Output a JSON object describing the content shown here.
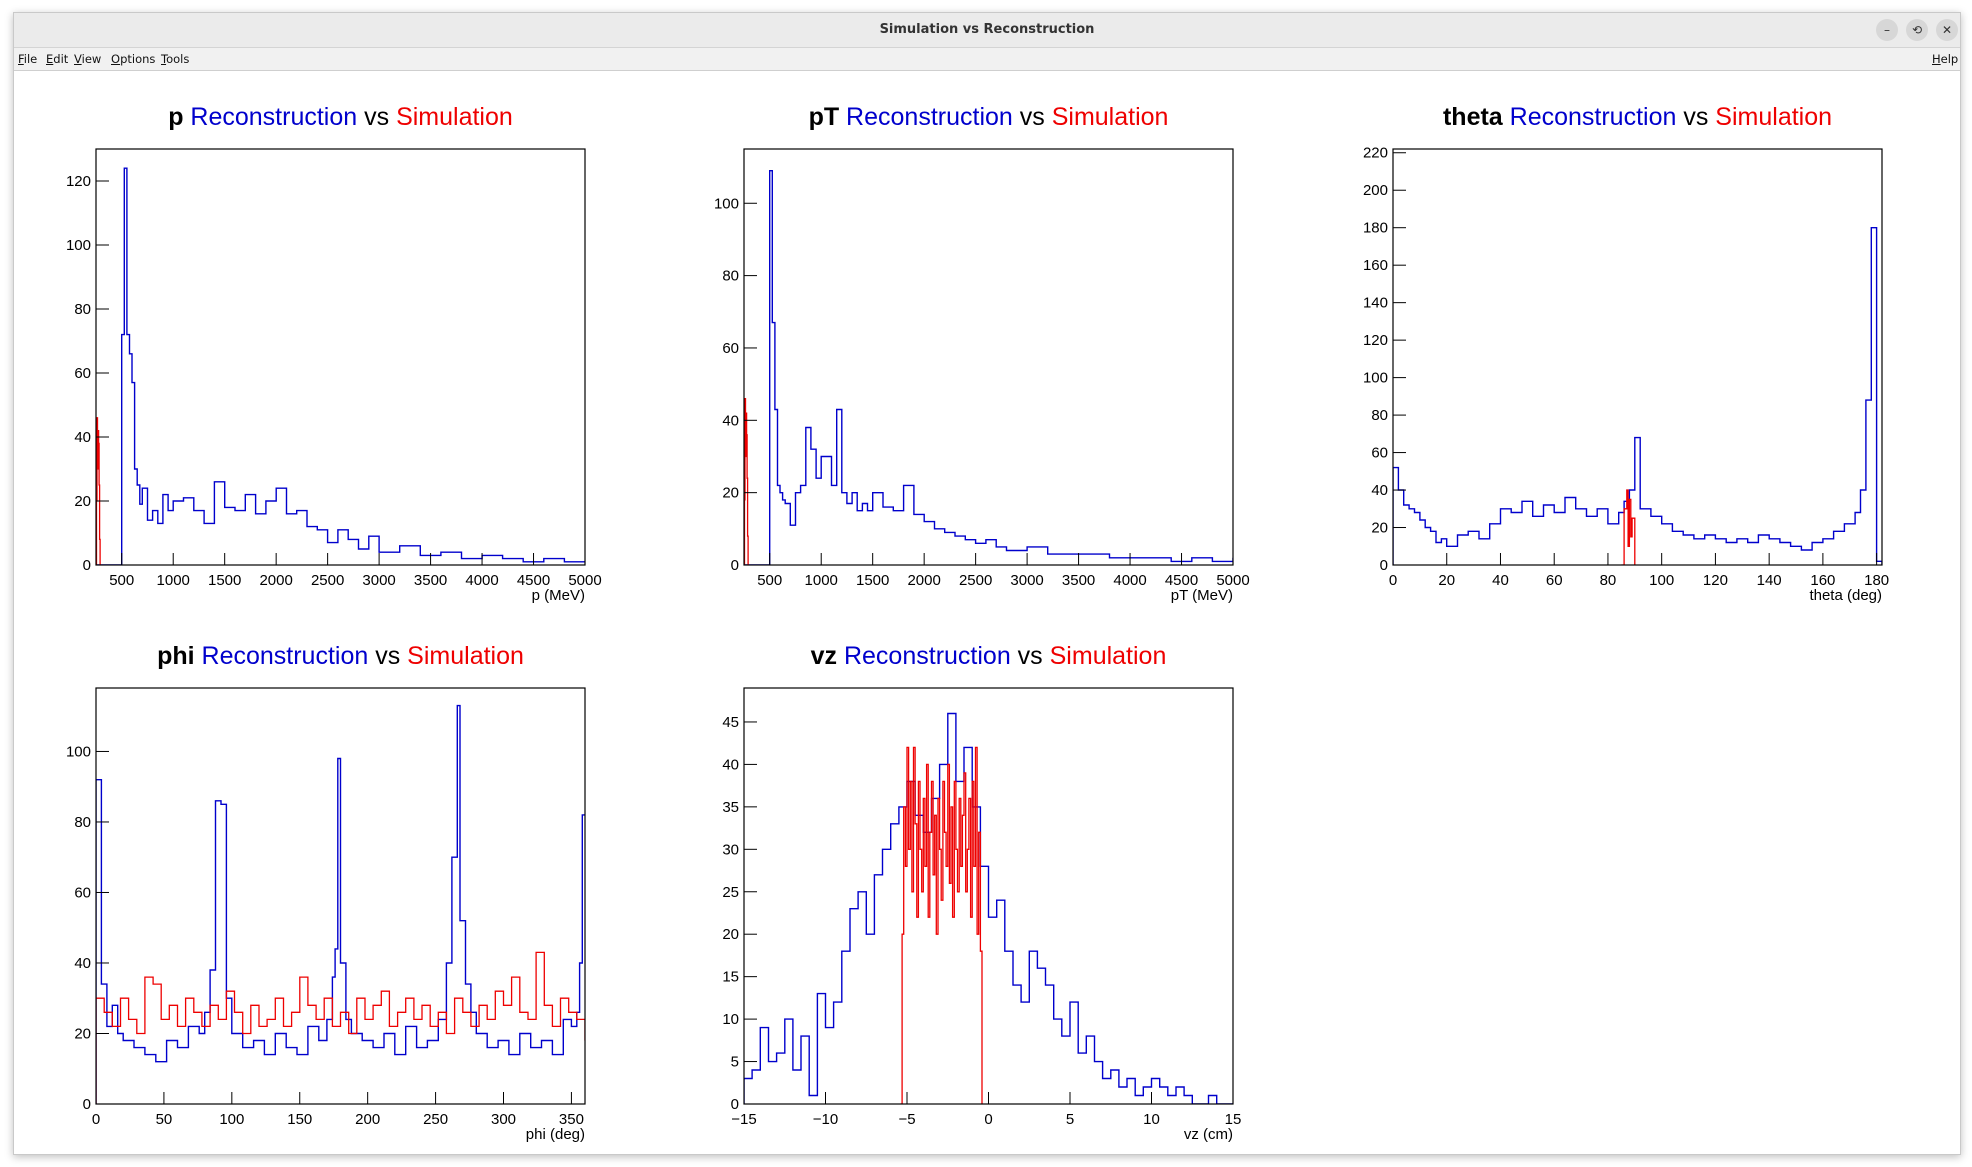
{
  "window": {
    "title": "Simulation vs Reconstruction",
    "controls": [
      "–",
      "⟲",
      "✕"
    ]
  },
  "menubar": {
    "items": [
      "File",
      "Edit",
      "View",
      "Options",
      "Tools"
    ],
    "help": "Help"
  },
  "colors": {
    "reconstruction": "#0000cc",
    "simulation": "#ee0000"
  },
  "chart_data": [
    {
      "type": "line",
      "title": {
        "variable": "p",
        "reco": "Reconstruction",
        "vs": "vs",
        "sim": "Simulation"
      },
      "xlabel": "p (MeV)",
      "ylabel": "",
      "xlim": [
        250,
        5000
      ],
      "ylim": [
        0,
        130
      ],
      "xticks": [
        500,
        1000,
        1500,
        2000,
        2500,
        3000,
        3500,
        4000,
        4500,
        5000
      ],
      "yticks": [
        0,
        20,
        40,
        60,
        80,
        100,
        120
      ],
      "series": [
        {
          "role": "reconstruction",
          "x": [
            250,
            500,
            525,
            550,
            575,
            600,
            625,
            650,
            675,
            700,
            750,
            800,
            850,
            900,
            950,
            1000,
            1100,
            1200,
            1300,
            1400,
            1500,
            1600,
            1700,
            1800,
            1900,
            2000,
            2100,
            2200,
            2300,
            2400,
            2500,
            2600,
            2700,
            2800,
            2900,
            3000,
            3200,
            3400,
            3600,
            3800,
            4000,
            4200,
            4400,
            4600,
            4800,
            5000
          ],
          "y": [
            0,
            72,
            124,
            72,
            66,
            57,
            30,
            25,
            19,
            24,
            14,
            17,
            13,
            22,
            17,
            20,
            21,
            17,
            13,
            26,
            18,
            17,
            22,
            16,
            20,
            24,
            16,
            17,
            12,
            11,
            7,
            11,
            8,
            5,
            9,
            4,
            6,
            3,
            4,
            2,
            3,
            2,
            1,
            2,
            1,
            1
          ]
        },
        {
          "role": "simulation",
          "x": [
            250,
            255,
            260,
            265,
            270,
            275,
            280,
            285,
            290
          ],
          "y": [
            0,
            20,
            46,
            30,
            42,
            38,
            25,
            8,
            0
          ]
        }
      ]
    },
    {
      "type": "line",
      "title": {
        "variable": "pT",
        "reco": "Reconstruction",
        "vs": "vs",
        "sim": "Simulation"
      },
      "xlabel": "pT (MeV)",
      "ylabel": "",
      "xlim": [
        250,
        5000
      ],
      "ylim": [
        0,
        115
      ],
      "xticks": [
        500,
        1000,
        1500,
        2000,
        2500,
        3000,
        3500,
        4000,
        4500,
        5000
      ],
      "yticks": [
        0,
        20,
        40,
        60,
        80,
        100
      ],
      "series": [
        {
          "role": "reconstruction",
          "x": [
            250,
            500,
            525,
            550,
            575,
            600,
            625,
            650,
            700,
            750,
            800,
            850,
            900,
            950,
            1000,
            1050,
            1100,
            1150,
            1200,
            1250,
            1300,
            1350,
            1400,
            1450,
            1500,
            1600,
            1700,
            1800,
            1900,
            2000,
            2100,
            2200,
            2300,
            2400,
            2500,
            2600,
            2700,
            2800,
            2900,
            3000,
            3200,
            3400,
            3600,
            3800,
            4000,
            4200,
            4400,
            4600,
            4800,
            5000
          ],
          "y": [
            0,
            109,
            67,
            43,
            22,
            20,
            18,
            17,
            11,
            20,
            22,
            38,
            32,
            24,
            30,
            30,
            22,
            43,
            20,
            17,
            20,
            15,
            17,
            15,
            20,
            16,
            15,
            22,
            14,
            12,
            10,
            9,
            8,
            7,
            6,
            7,
            5,
            4,
            4,
            5,
            3,
            3,
            3,
            2,
            2,
            2,
            1,
            2,
            1,
            2
          ]
        },
        {
          "role": "simulation",
          "x": [
            250,
            255,
            260,
            265,
            270,
            275,
            280,
            285,
            290
          ],
          "y": [
            0,
            18,
            46,
            30,
            42,
            36,
            24,
            8,
            0
          ]
        }
      ]
    },
    {
      "type": "line",
      "title": {
        "variable": "theta",
        "reco": "Reconstruction",
        "vs": "vs",
        "sim": "Simulation"
      },
      "xlabel": "theta (deg)",
      "ylabel": "",
      "xlim": [
        0,
        182
      ],
      "ylim": [
        0,
        222
      ],
      "xticks": [
        0,
        20,
        40,
        60,
        80,
        100,
        120,
        140,
        160,
        180
      ],
      "yticks": [
        0,
        20,
        40,
        60,
        80,
        100,
        120,
        140,
        160,
        180,
        200,
        220
      ],
      "series": [
        {
          "role": "reconstruction",
          "x": [
            0,
            2,
            4,
            6,
            8,
            10,
            12,
            14,
            16,
            18,
            20,
            24,
            28,
            32,
            36,
            40,
            44,
            48,
            52,
            56,
            60,
            64,
            68,
            72,
            76,
            80,
            84,
            86,
            88,
            90,
            92,
            96,
            100,
            104,
            108,
            112,
            116,
            120,
            124,
            128,
            132,
            136,
            140,
            144,
            148,
            152,
            156,
            160,
            164,
            168,
            172,
            174,
            176,
            178,
            180,
            182
          ],
          "y": [
            52,
            40,
            32,
            30,
            28,
            24,
            20,
            18,
            12,
            14,
            10,
            16,
            18,
            14,
            22,
            30,
            28,
            34,
            26,
            32,
            28,
            36,
            30,
            26,
            30,
            22,
            28,
            34,
            40,
            68,
            30,
            26,
            22,
            18,
            16,
            14,
            16,
            14,
            12,
            14,
            12,
            16,
            14,
            12,
            10,
            8,
            12,
            14,
            18,
            22,
            28,
            40,
            88,
            180,
            2,
            0
          ]
        },
        {
          "role": "simulation",
          "x": [
            85,
            86,
            87,
            87.5,
            88,
            88.5,
            89,
            90
          ],
          "y": [
            0,
            30,
            40,
            10,
            35,
            15,
            25,
            0
          ]
        }
      ]
    },
    {
      "type": "line",
      "title": {
        "variable": "phi",
        "reco": "Reconstruction",
        "vs": "vs",
        "sim": "Simulation"
      },
      "xlabel": "phi (deg)",
      "ylabel": "",
      "xlim": [
        0,
        360
      ],
      "ylim": [
        0,
        118
      ],
      "xticks": [
        0,
        50,
        100,
        150,
        200,
        250,
        300,
        350
      ],
      "yticks": [
        0,
        20,
        40,
        60,
        80,
        100
      ],
      "series": [
        {
          "role": "reconstruction",
          "x": [
            0,
            4,
            8,
            12,
            16,
            20,
            28,
            36,
            44,
            52,
            60,
            68,
            76,
            80,
            84,
            88,
            92,
            96,
            100,
            108,
            116,
            124,
            132,
            140,
            148,
            156,
            164,
            170,
            174,
            176,
            178,
            180,
            184,
            188,
            196,
            204,
            212,
            220,
            228,
            236,
            244,
            252,
            258,
            262,
            266,
            268,
            272,
            276,
            280,
            288,
            296,
            304,
            312,
            320,
            328,
            336,
            344,
            350,
            354,
            356,
            358,
            360
          ],
          "y": [
            92,
            34,
            22,
            28,
            20,
            18,
            16,
            14,
            12,
            18,
            16,
            22,
            20,
            26,
            38,
            86,
            85,
            30,
            20,
            16,
            18,
            14,
            20,
            16,
            14,
            22,
            18,
            24,
            36,
            44,
            98,
            40,
            24,
            20,
            18,
            16,
            20,
            14,
            22,
            16,
            18,
            24,
            40,
            70,
            113,
            52,
            34,
            26,
            20,
            16,
            18,
            14,
            20,
            16,
            18,
            14,
            24,
            22,
            26,
            40,
            82,
            82
          ]
        },
        {
          "role": "simulation",
          "x": [
            0,
            6,
            12,
            18,
            24,
            30,
            36,
            42,
            48,
            54,
            60,
            66,
            72,
            78,
            84,
            90,
            96,
            102,
            108,
            114,
            120,
            126,
            132,
            138,
            144,
            150,
            156,
            162,
            168,
            174,
            180,
            186,
            192,
            198,
            204,
            210,
            216,
            222,
            228,
            234,
            240,
            246,
            252,
            258,
            264,
            270,
            276,
            282,
            288,
            294,
            300,
            306,
            312,
            318,
            324,
            330,
            336,
            342,
            348,
            354,
            360
          ],
          "y": [
            30,
            26,
            22,
            30,
            24,
            20,
            36,
            34,
            24,
            28,
            22,
            30,
            26,
            22,
            28,
            24,
            32,
            26,
            20,
            28,
            22,
            24,
            30,
            22,
            26,
            36,
            28,
            24,
            30,
            22,
            26,
            20,
            30,
            24,
            28,
            32,
            22,
            26,
            30,
            24,
            28,
            22,
            26,
            20,
            30,
            26,
            22,
            28,
            24,
            32,
            28,
            36,
            26,
            24,
            43,
            28,
            22,
            30,
            26,
            24,
            18
          ]
        }
      ]
    },
    {
      "type": "line",
      "title": {
        "variable": "vz",
        "reco": "Reconstruction",
        "vs": "vs",
        "sim": "Simulation"
      },
      "xlabel": "vz (cm)",
      "ylabel": "",
      "xlim": [
        -15,
        15
      ],
      "ylim": [
        0,
        49
      ],
      "xticks": [
        -15,
        -10,
        -5,
        0,
        5,
        10,
        15
      ],
      "xticklabels": [
        "−15",
        "−10",
        "−5",
        "0",
        "5",
        "10",
        "15"
      ],
      "yticks": [
        0,
        5,
        10,
        15,
        20,
        25,
        30,
        35,
        40,
        45
      ],
      "series": [
        {
          "role": "reconstruction",
          "x": [
            -15,
            -14.5,
            -14,
            -13.5,
            -13,
            -12.5,
            -12,
            -11.5,
            -11,
            -10.5,
            -10,
            -9.5,
            -9,
            -8.5,
            -8,
            -7.5,
            -7,
            -6.5,
            -6,
            -5.5,
            -5,
            -4.5,
            -4,
            -3.5,
            -3,
            -2.5,
            -2,
            -1.5,
            -1,
            -0.5,
            0,
            0.5,
            1,
            1.5,
            2,
            2.5,
            3,
            3.5,
            4,
            4.5,
            5,
            5.5,
            6,
            6.5,
            7,
            7.5,
            8,
            8.5,
            9,
            9.5,
            10,
            10.5,
            11,
            11.5,
            12,
            12.5,
            13,
            13.5,
            14,
            14.5,
            15
          ],
          "y": [
            3,
            4,
            9,
            5,
            6,
            10,
            4,
            8,
            1,
            13,
            9,
            12,
            18,
            23,
            25,
            20,
            27,
            30,
            33,
            35,
            38,
            34,
            32,
            36,
            40,
            46,
            38,
            42,
            35,
            28,
            22,
            24,
            18,
            14,
            12,
            18,
            16,
            14,
            10,
            8,
            12,
            6,
            8,
            5,
            3,
            4,
            2,
            3,
            1,
            2,
            3,
            2,
            1,
            2,
            1,
            0,
            0,
            1,
            0,
            0,
            0
          ]
        },
        {
          "role": "simulation",
          "x": [
            -5.4,
            -5.3,
            -5.2,
            -5.1,
            -5.0,
            -4.9,
            -4.8,
            -4.7,
            -4.6,
            -4.5,
            -4.4,
            -4.3,
            -4.2,
            -4.1,
            -4.0,
            -3.9,
            -3.8,
            -3.7,
            -3.6,
            -3.5,
            -3.4,
            -3.3,
            -3.2,
            -3.1,
            -3.0,
            -2.9,
            -2.8,
            -2.7,
            -2.6,
            -2.5,
            -2.4,
            -2.3,
            -2.2,
            -2.1,
            -2.0,
            -1.9,
            -1.8,
            -1.7,
            -1.6,
            -1.5,
            -1.4,
            -1.3,
            -1.2,
            -1.1,
            -1.0,
            -0.9,
            -0.8,
            -0.7,
            -0.6,
            -0.5,
            -0.4
          ],
          "y": [
            0,
            20,
            35,
            28,
            42,
            30,
            38,
            25,
            42,
            33,
            22,
            38,
            30,
            25,
            36,
            28,
            40,
            22,
            32,
            38,
            27,
            34,
            20,
            36,
            30,
            24,
            38,
            32,
            28,
            40,
            26,
            35,
            22,
            38,
            30,
            25,
            36,
            28,
            34,
            39,
            25,
            30,
            36,
            22,
            38,
            28,
            42,
            20,
            32,
            18,
            0
          ]
        }
      ]
    }
  ]
}
